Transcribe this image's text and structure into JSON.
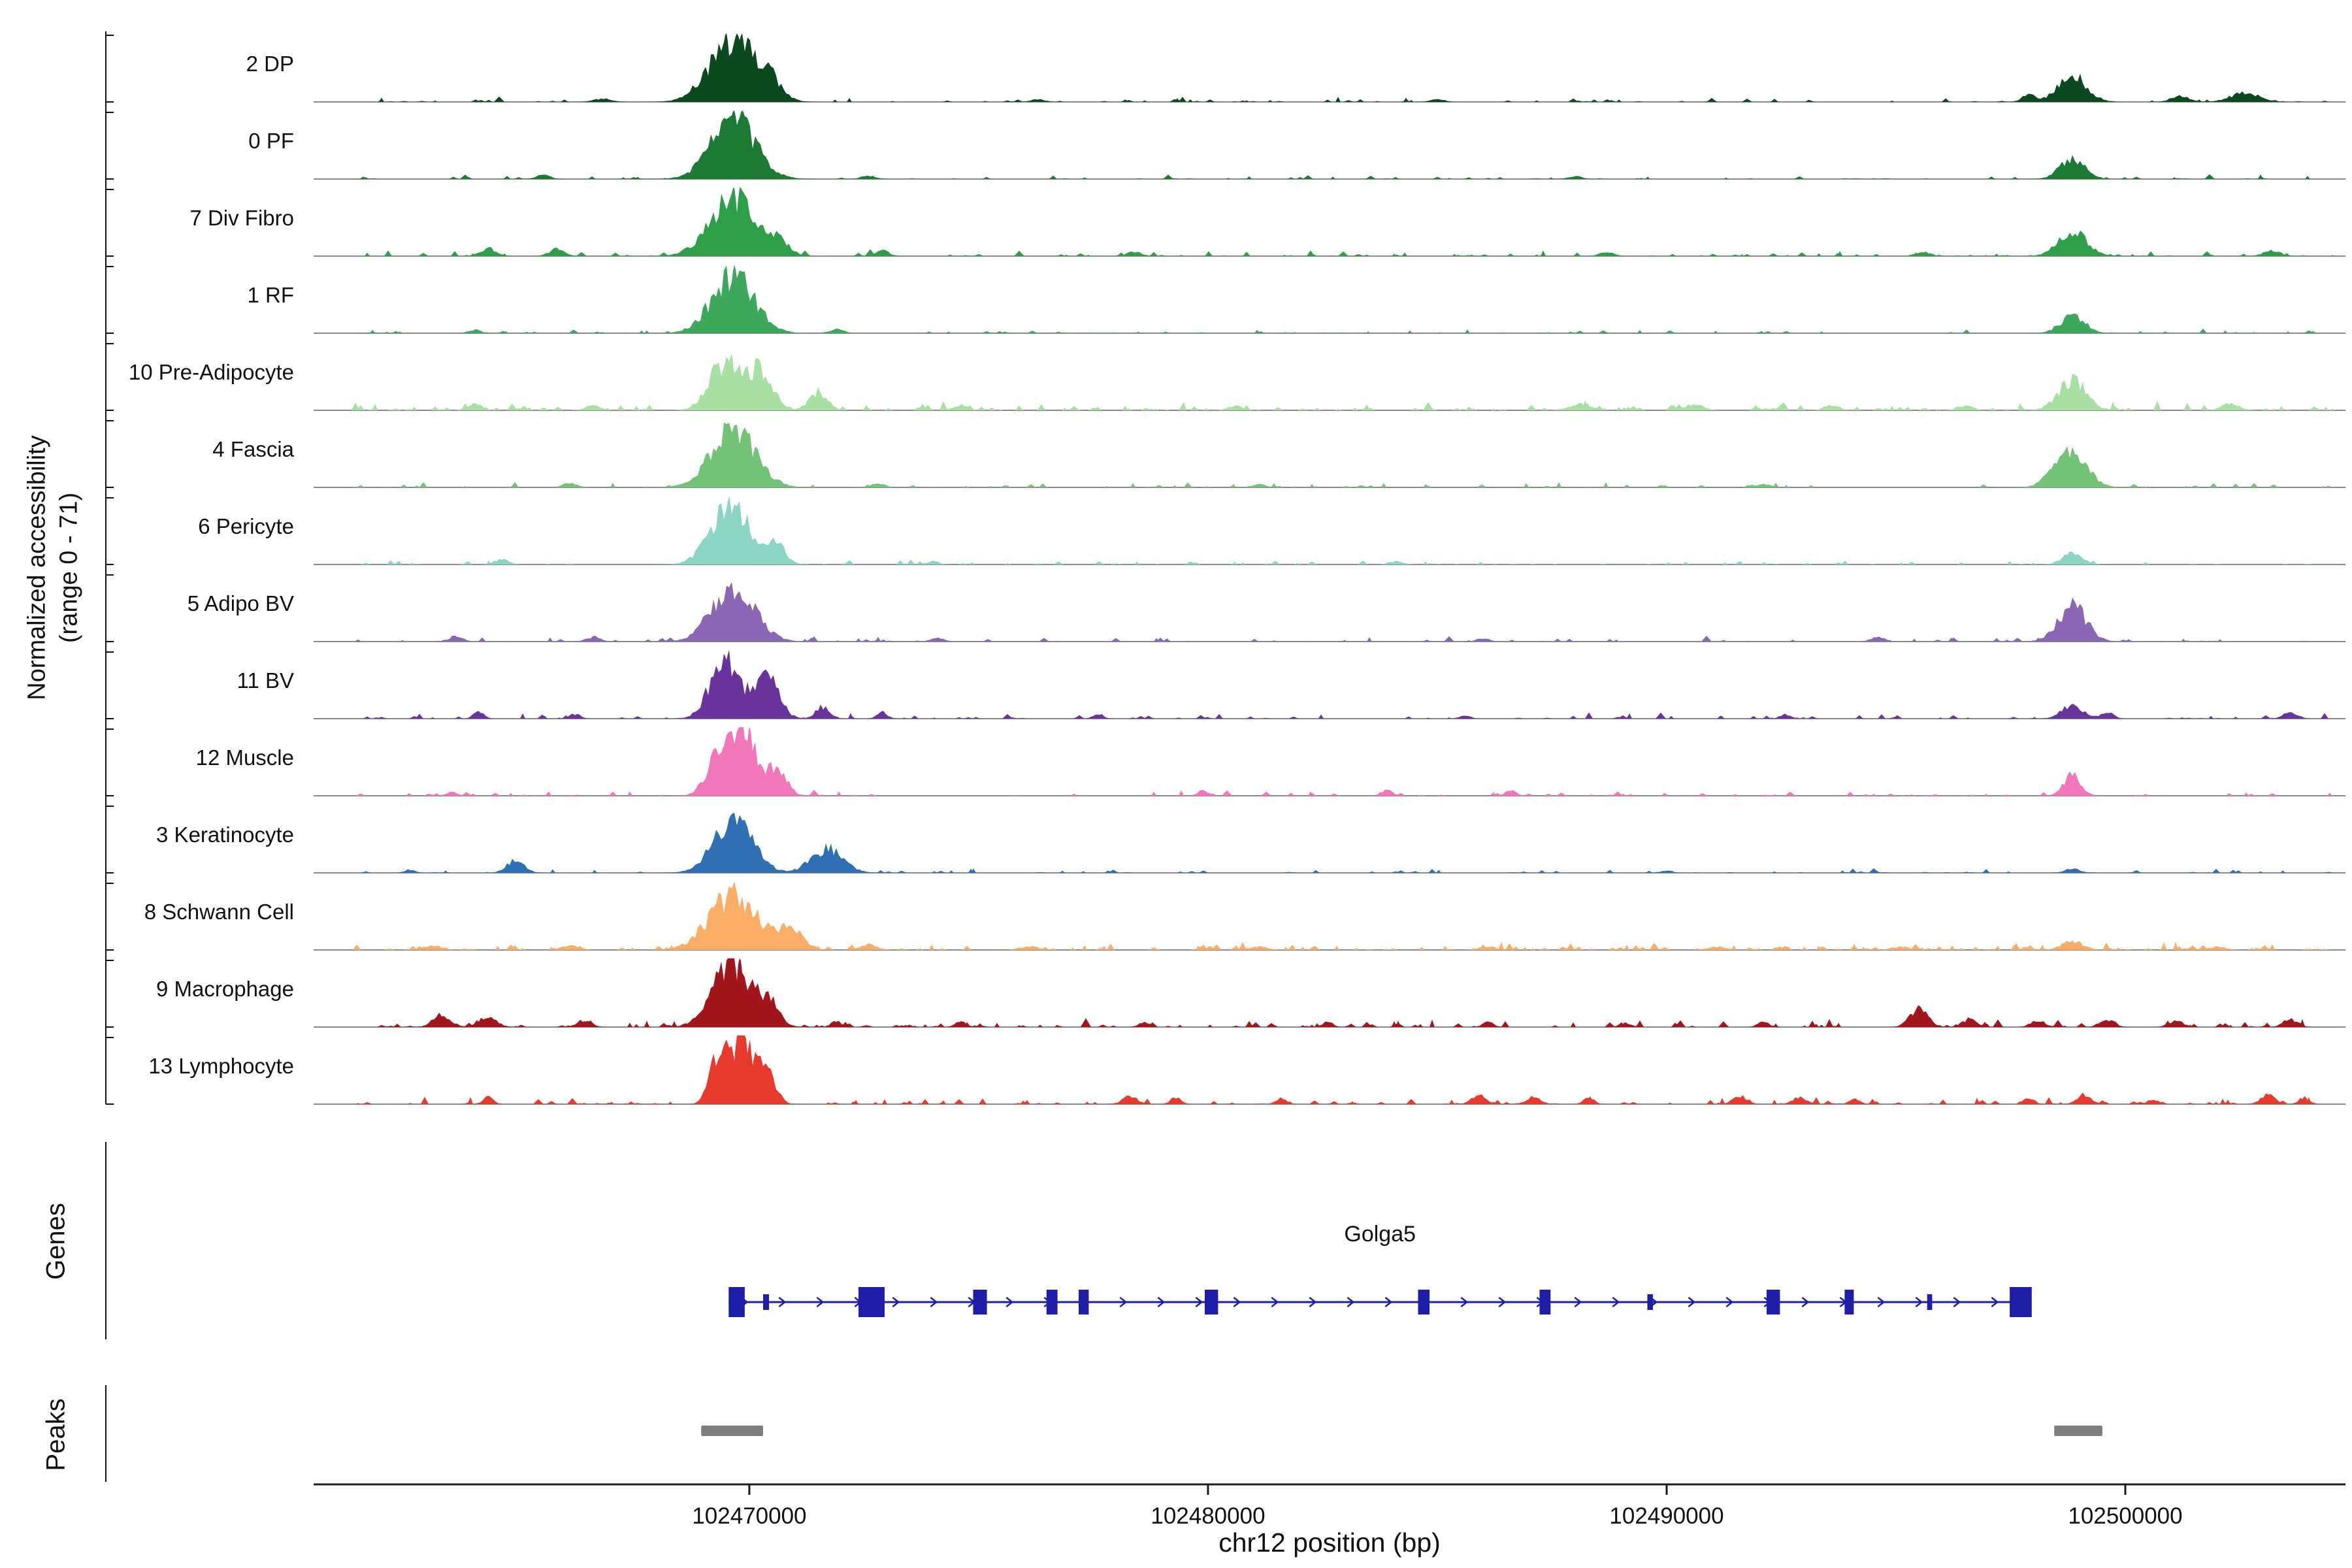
{
  "figure": {
    "y_axis": {
      "line1": "Normalized accessibility",
      "line2": "(range 0 - 71)"
    },
    "sections": {
      "genes_label": "Genes",
      "peaks_label": "Peaks"
    }
  },
  "chart_data": {
    "type": "area",
    "title": "",
    "xlabel": "chr12 position (bp)",
    "ylabel": "Normalized accessibility (range 0 - 71)",
    "y_range_per_track": [
      0,
      71
    ],
    "x_range": [
      102460500,
      102504800
    ],
    "x_ticks": [
      102470000,
      102480000,
      102490000,
      102500000
    ],
    "baseline_color": "#8A8A8A",
    "axis_color": "#1a1a1a",
    "peak_color": "#7E7E7E",
    "peak_regions": [
      [
        102468950,
        102470300
      ],
      [
        102498450,
        102499500
      ]
    ],
    "genes": [
      {
        "name": "Golga5",
        "start": 102469550,
        "end": 102497950,
        "strand": "+",
        "color": "#1E1EA8",
        "exons": [
          [
            102469550,
            102469900,
            "b"
          ],
          [
            102470300,
            102470430,
            "s"
          ],
          [
            102472380,
            102472950,
            "b"
          ],
          [
            102474880,
            102475180,
            "e"
          ],
          [
            102476480,
            102476720,
            "e"
          ],
          [
            102477180,
            102477400,
            "e"
          ],
          [
            102479930,
            102480220,
            "e"
          ],
          [
            102484580,
            102484830,
            "e"
          ],
          [
            102487230,
            102487470,
            "e"
          ],
          [
            102489580,
            102489700,
            "s"
          ],
          [
            102492180,
            102492470,
            "e"
          ],
          [
            102493880,
            102494080,
            "e"
          ],
          [
            102495680,
            102495790,
            "s"
          ],
          [
            102497480,
            102497960,
            "b"
          ]
        ]
      }
    ],
    "tracks": [
      {
        "label": "2 DP",
        "color": "#0B4A1F",
        "noise": 0.03,
        "noise_spikes": 100,
        "bumps": [
          [
            102469650,
            1300,
            0.95
          ],
          [
            102470500,
            600,
            0.22
          ],
          [
            102498850,
            800,
            0.4
          ],
          [
            102497900,
            400,
            0.1
          ],
          [
            102501200,
            500,
            0.09
          ],
          [
            102502600,
            800,
            0.14
          ],
          [
            102466800,
            500,
            0.05
          ],
          [
            102476300,
            400,
            0.04
          ],
          [
            102485000,
            400,
            0.04
          ]
        ]
      },
      {
        "label": "0 PF",
        "color": "#1D7A35",
        "noise": 0.025,
        "noise_spikes": 80,
        "bumps": [
          [
            102469650,
            1250,
            0.9
          ],
          [
            102498850,
            700,
            0.32
          ],
          [
            102465500,
            400,
            0.06
          ],
          [
            102472600,
            400,
            0.05
          ],
          [
            102488000,
            400,
            0.04
          ]
        ]
      },
      {
        "label": "7 Div Fibro",
        "color": "#2F9E48",
        "noise": 0.035,
        "noise_spikes": 130,
        "bumps": [
          [
            102469650,
            1300,
            0.9
          ],
          [
            102470700,
            500,
            0.18
          ],
          [
            102498850,
            800,
            0.38
          ],
          [
            102464300,
            450,
            0.12
          ],
          [
            102465800,
            450,
            0.1
          ],
          [
            102472900,
            400,
            0.08
          ],
          [
            102478400,
            400,
            0.07
          ],
          [
            102488700,
            400,
            0.06
          ],
          [
            102495600,
            400,
            0.06
          ],
          [
            102503200,
            500,
            0.08
          ]
        ]
      },
      {
        "label": "1 RF",
        "color": "#3DA75C",
        "noise": 0.025,
        "noise_spikes": 90,
        "bumps": [
          [
            102469650,
            1200,
            0.85
          ],
          [
            102498850,
            700,
            0.26
          ],
          [
            102471900,
            400,
            0.06
          ],
          [
            102464000,
            350,
            0.05
          ]
        ]
      },
      {
        "label": "10 Pre-Adipocyte",
        "color": "#A8DFA2",
        "noise": 0.05,
        "noise_spikes": 170,
        "bumps": [
          [
            102469450,
            850,
            0.72
          ],
          [
            102470250,
            700,
            0.58
          ],
          [
            102471500,
            500,
            0.28
          ],
          [
            102498850,
            800,
            0.44
          ],
          [
            102502300,
            500,
            0.1
          ],
          [
            102464000,
            400,
            0.1
          ],
          [
            102466600,
            400,
            0.08
          ],
          [
            102474600,
            400,
            0.08
          ],
          [
            102480600,
            400,
            0.07
          ],
          [
            102488100,
            600,
            0.1
          ],
          [
            102490600,
            500,
            0.09
          ],
          [
            102493600,
            400,
            0.08
          ],
          [
            102496500,
            400,
            0.07
          ]
        ]
      },
      {
        "label": "4 Fascia",
        "color": "#72C375",
        "noise": 0.03,
        "noise_spikes": 100,
        "bumps": [
          [
            102469650,
            1250,
            0.85
          ],
          [
            102498800,
            900,
            0.56
          ],
          [
            102466100,
            400,
            0.07
          ],
          [
            102481100,
            400,
            0.05
          ],
          [
            102492100,
            400,
            0.05
          ],
          [
            102472800,
            400,
            0.06
          ]
        ]
      },
      {
        "label": "6 Pericyte",
        "color": "#8CD5C4",
        "noise": 0.03,
        "noise_spikes": 90,
        "bumps": [
          [
            102469600,
            1100,
            0.88
          ],
          [
            102470600,
            500,
            0.3
          ],
          [
            102498850,
            600,
            0.16
          ],
          [
            102464600,
            400,
            0.08
          ],
          [
            102484100,
            400,
            0.05
          ],
          [
            102474000,
            350,
            0.05
          ]
        ]
      },
      {
        "label": "5 Adipo BV",
        "color": "#8A66B4",
        "noise": 0.03,
        "noise_spikes": 100,
        "bumps": [
          [
            102469650,
            1200,
            0.82
          ],
          [
            102498850,
            800,
            0.52
          ],
          [
            102463600,
            400,
            0.08
          ],
          [
            102466600,
            400,
            0.07
          ],
          [
            102474100,
            400,
            0.05
          ],
          [
            102494600,
            400,
            0.06
          ],
          [
            102486000,
            350,
            0.05
          ]
        ]
      },
      {
        "label": "11 BV",
        "color": "#68349B",
        "noise": 0.035,
        "noise_spikes": 110,
        "bumps": [
          [
            102469450,
            800,
            0.88
          ],
          [
            102470350,
            700,
            0.66
          ],
          [
            102471600,
            400,
            0.18
          ],
          [
            102498850,
            600,
            0.2
          ],
          [
            102499600,
            350,
            0.1
          ],
          [
            102464100,
            300,
            0.1
          ],
          [
            102472900,
            300,
            0.1
          ],
          [
            102477600,
            300,
            0.06
          ],
          [
            102485600,
            300,
            0.05
          ],
          [
            102492600,
            300,
            0.06
          ],
          [
            102503600,
            400,
            0.1
          ],
          [
            102466200,
            300,
            0.07
          ]
        ]
      },
      {
        "label": "12 Muscle",
        "color": "#F276B9",
        "noise": 0.03,
        "noise_spikes": 90,
        "bumps": [
          [
            102469400,
            700,
            0.85
          ],
          [
            102469950,
            500,
            0.97
          ],
          [
            102470550,
            600,
            0.45
          ],
          [
            102498850,
            500,
            0.3
          ],
          [
            102479900,
            300,
            0.08
          ],
          [
            102483900,
            300,
            0.1
          ],
          [
            102486600,
            300,
            0.08
          ],
          [
            102463500,
            300,
            0.06
          ]
        ]
      },
      {
        "label": "3 Keratinocyte",
        "color": "#2F6FB3",
        "noise": 0.025,
        "noise_spikes": 100,
        "bumps": [
          [
            102469650,
            1100,
            0.84
          ],
          [
            102471700,
            900,
            0.36
          ],
          [
            102464900,
            500,
            0.18
          ],
          [
            102462600,
            300,
            0.05
          ],
          [
            102498850,
            400,
            0.07
          ],
          [
            102490000,
            300,
            0.04
          ]
        ]
      },
      {
        "label": "8 Schwann Cell",
        "color": "#FCAE68",
        "noise": 0.045,
        "noise_spikes": 190,
        "bumps": [
          [
            102469650,
            1350,
            0.82
          ],
          [
            102470900,
            700,
            0.3
          ],
          [
            102498850,
            600,
            0.13
          ],
          [
            102463100,
            500,
            0.07
          ],
          [
            102466100,
            500,
            0.06
          ],
          [
            102472600,
            500,
            0.08
          ],
          [
            102476100,
            500,
            0.06
          ],
          [
            102481100,
            500,
            0.05
          ],
          [
            102486100,
            500,
            0.05
          ],
          [
            102491100,
            500,
            0.05
          ],
          [
            102495100,
            500,
            0.05
          ],
          [
            102502000,
            500,
            0.05
          ]
        ]
      },
      {
        "label": "9 Macrophage",
        "color": "#A3151D",
        "noise": 0.05,
        "noise_spikes": 180,
        "bumps": [
          [
            102469650,
            1100,
            0.98
          ],
          [
            102470500,
            500,
            0.3
          ],
          [
            102463300,
            500,
            0.18
          ],
          [
            102464300,
            500,
            0.15
          ],
          [
            102466400,
            400,
            0.1
          ],
          [
            102471900,
            300,
            0.1
          ],
          [
            102474600,
            300,
            0.08
          ],
          [
            102478600,
            300,
            0.07
          ],
          [
            102482600,
            300,
            0.08
          ],
          [
            102486100,
            300,
            0.08
          ],
          [
            102489100,
            300,
            0.07
          ],
          [
            102492100,
            300,
            0.08
          ],
          [
            102495500,
            500,
            0.28
          ],
          [
            102496600,
            400,
            0.12
          ],
          [
            102498100,
            400,
            0.1
          ],
          [
            102499600,
            400,
            0.12
          ],
          [
            102501100,
            400,
            0.1
          ],
          [
            102503600,
            400,
            0.12
          ]
        ]
      },
      {
        "label": "13 Lymphocyte",
        "color": "#E8392D",
        "noise": 0.04,
        "noise_spikes": 140,
        "bumps": [
          [
            102469350,
            500,
            0.8
          ],
          [
            102469850,
            500,
            0.97
          ],
          [
            102470350,
            500,
            0.6
          ],
          [
            102464300,
            300,
            0.1
          ],
          [
            102478300,
            400,
            0.12
          ],
          [
            102479300,
            300,
            0.1
          ],
          [
            102481600,
            300,
            0.1
          ],
          [
            102485900,
            400,
            0.14
          ],
          [
            102487100,
            400,
            0.12
          ],
          [
            102488300,
            300,
            0.1
          ],
          [
            102491600,
            400,
            0.12
          ],
          [
            102492900,
            400,
            0.1
          ],
          [
            102494100,
            300,
            0.08
          ],
          [
            102497900,
            300,
            0.1
          ],
          [
            102499100,
            400,
            0.14
          ],
          [
            102500600,
            300,
            0.08
          ],
          [
            102503100,
            400,
            0.14
          ],
          [
            102503900,
            300,
            0.1
          ]
        ]
      }
    ]
  }
}
